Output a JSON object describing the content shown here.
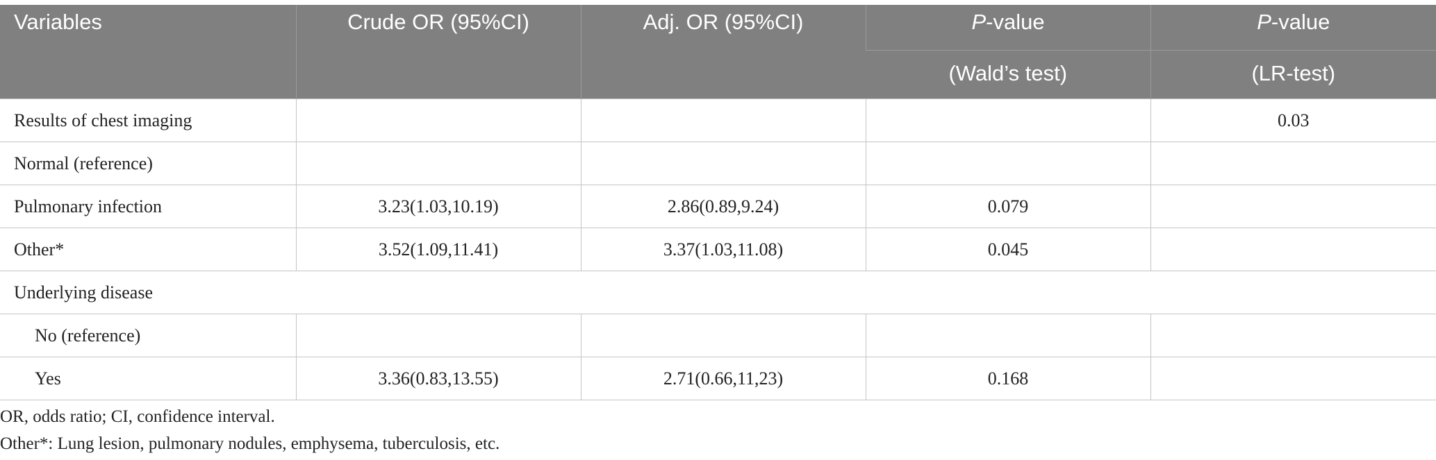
{
  "table": {
    "header": {
      "variables": "Variables",
      "crude": "Crude OR (95%CI)",
      "adj": "Adj. OR (95%CI)",
      "wald": {
        "italic": "P",
        "text": "-value",
        "sub": "(Wald’s test)"
      },
      "lr": {
        "italic": "P",
        "text": "-value",
        "sub": "(LR-test)"
      }
    },
    "rows": [
      {
        "label": "Results of chest imaging",
        "lr": "0.03"
      },
      {
        "label": "Normal (reference)"
      },
      {
        "label": "Pulmonary infection",
        "crude": "3.23(1.03,10.19)",
        "adj": "2.86(0.89,9.24)",
        "wald": "0.079"
      },
      {
        "label": "Other*",
        "crude": "3.52(1.09,11.41)",
        "adj": "3.37(1.03,11.08)",
        "wald": "0.045"
      },
      {
        "label": "Underlying disease"
      },
      {
        "label": "No (reference)"
      },
      {
        "label": "Yes",
        "crude": "3.36(0.83,13.55)",
        "adj": "2.71(0.66,11,23)",
        "wald": "0.168"
      }
    ]
  },
  "footnotes": [
    "OR, odds ratio; CI, confidence interval.",
    "Other*: Lung lesion, pulmonary nodules, emphysema, tuberculosis, etc."
  ]
}
